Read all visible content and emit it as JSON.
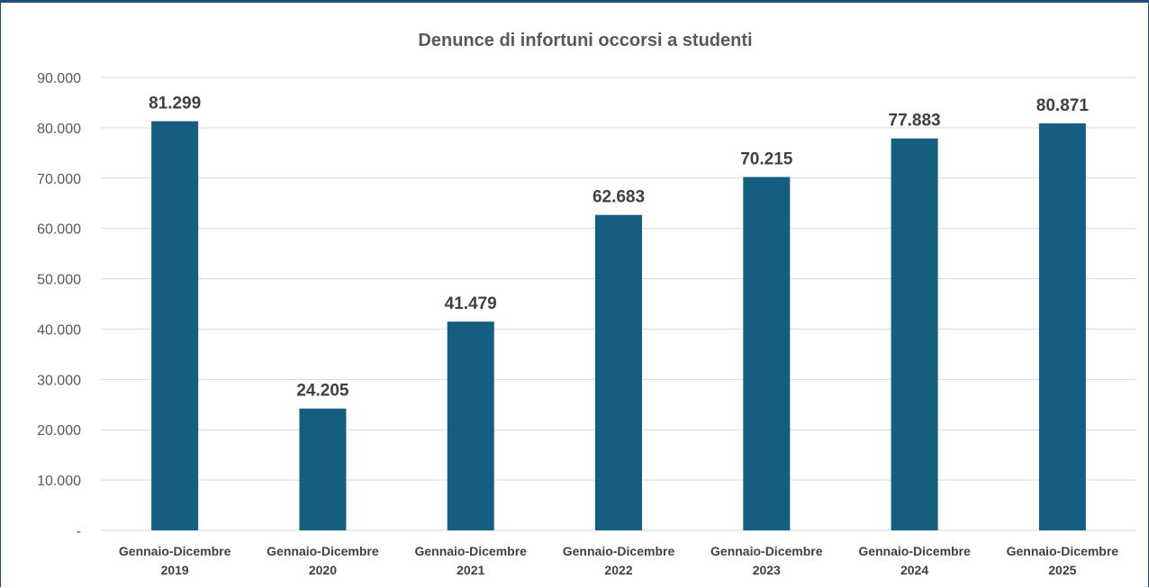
{
  "chart_data": {
    "type": "bar",
    "title": "Denunce di infortuni occorsi a studenti",
    "xlabel": "",
    "ylabel": "",
    "categories": [
      [
        "Gennaio-Dicembre",
        "2019"
      ],
      [
        "Gennaio-Dicembre",
        "2020"
      ],
      [
        "Gennaio-Dicembre",
        "2021"
      ],
      [
        "Gennaio-Dicembre",
        "2022"
      ],
      [
        "Gennaio-Dicembre",
        "2023"
      ],
      [
        "Gennaio-Dicembre",
        "2024"
      ],
      [
        "Gennaio-Dicembre",
        "2025"
      ]
    ],
    "values": [
      81299,
      24205,
      41479,
      62683,
      70215,
      77883,
      80871
    ],
    "data_labels": [
      "81.299",
      "24.205",
      "41.479",
      "62.683",
      "70.215",
      "77.883",
      "80.871"
    ],
    "ylim": [
      0,
      90000
    ],
    "y_ticks": [
      0,
      10000,
      20000,
      30000,
      40000,
      50000,
      60000,
      70000,
      80000,
      90000
    ],
    "y_tick_labels": [
      "-",
      "10.000",
      "20.000",
      "30.000",
      "40.000",
      "50.000",
      "60.000",
      "70.000",
      "80.000",
      "90.000"
    ],
    "grid": true,
    "legend": "none",
    "bar_color": "#155e80"
  }
}
